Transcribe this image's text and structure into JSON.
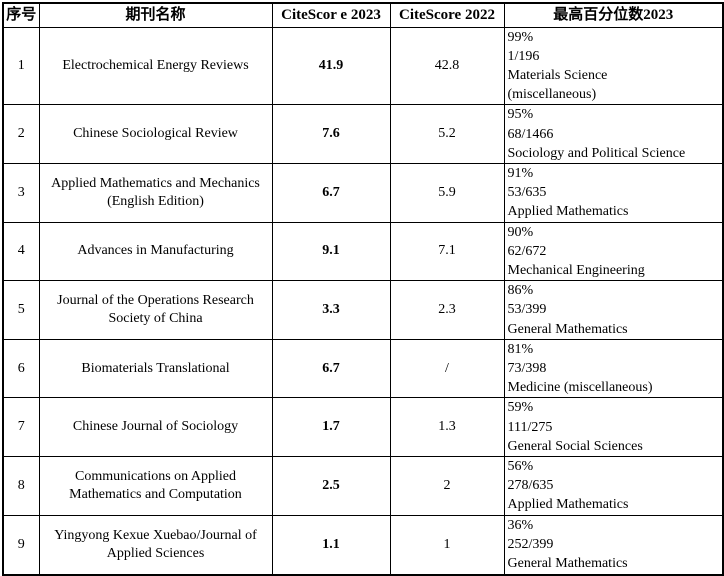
{
  "table": {
    "headers": {
      "seq": "序号",
      "journal": "期刊名称",
      "citescore2023": "CiteScor e 2023",
      "citescore2022": "CiteScore 2022",
      "percentile": "最高百分位数2023"
    },
    "rows": [
      {
        "seq": "1",
        "journal": "Electrochemical Energy Reviews",
        "cs2023": "41.9",
        "cs2022": "42.8",
        "percentile": [
          "99%",
          "1/196",
          "Materials Science",
          "(miscellaneous)"
        ]
      },
      {
        "seq": "2",
        "journal": "Chinese Sociological Review",
        "cs2023": "7.6",
        "cs2022": "5.2",
        "percentile": [
          "95%",
          "68/1466",
          "Sociology and Political Science"
        ]
      },
      {
        "seq": "3",
        "journal": "Applied Mathematics and Mechanics (English Edition)",
        "cs2023": "6.7",
        "cs2022": "5.9",
        "percentile": [
          "91%",
          "53/635",
          "Applied Mathematics"
        ]
      },
      {
        "seq": "4",
        "journal": "Advances in Manufacturing",
        "cs2023": "9.1",
        "cs2022": "7.1",
        "percentile": [
          "90%",
          "62/672",
          "Mechanical Engineering"
        ]
      },
      {
        "seq": "5",
        "journal": "Journal of the Operations Research Society of China",
        "cs2023": "3.3",
        "cs2022": "2.3",
        "percentile": [
          "86%",
          "53/399",
          "General Mathematics"
        ]
      },
      {
        "seq": "6",
        "journal": "Biomaterials Translational",
        "cs2023": "6.7",
        "cs2022": "/",
        "percentile": [
          "81%",
          "73/398",
          "Medicine (miscellaneous)"
        ]
      },
      {
        "seq": "7",
        "journal": "Chinese Journal of Sociology",
        "cs2023": "1.7",
        "cs2022": "1.3",
        "percentile": [
          "59%",
          "111/275",
          "General Social Sciences"
        ]
      },
      {
        "seq": "8",
        "journal": "Communications on Applied Mathematics and Computation",
        "cs2023": "2.5",
        "cs2022": "2",
        "percentile": [
          "56%",
          "278/635",
          "Applied Mathematics"
        ]
      },
      {
        "seq": "9",
        "journal": "Yingyong Kexue Xuebao/Journal of Applied Sciences",
        "cs2023": "1.1",
        "cs2022": "1",
        "percentile": [
          "36%",
          "252/399",
          "General Mathematics"
        ]
      }
    ]
  },
  "colors": {
    "border": "#000000",
    "background": "#ffffff",
    "text": "#000000"
  }
}
